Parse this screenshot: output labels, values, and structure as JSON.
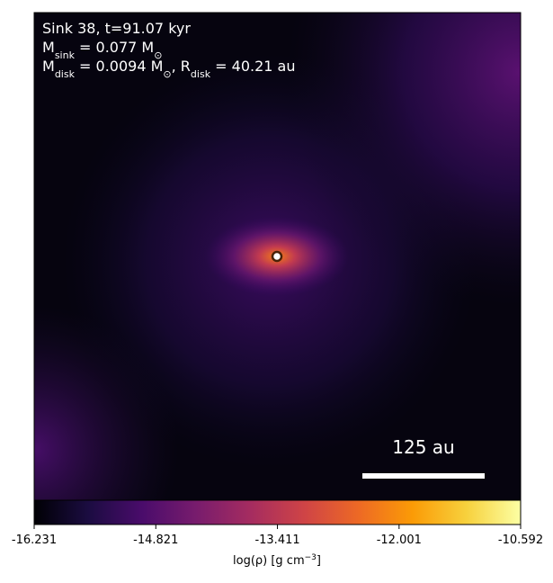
{
  "chart_data": {
    "type": "image",
    "annotations": [
      [
        "Sink 38, t=91.07 kyr"
      ],
      [
        "M",
        {
          "sub": "sink"
        },
        " = 0.077 M",
        {
          "sub": "⊙"
        }
      ],
      [
        "M",
        {
          "sub": "disk"
        },
        " = 0.0094 M",
        {
          "sub": "⊙"
        },
        ", R",
        {
          "sub": "disk"
        },
        " = 40.21 au"
      ]
    ],
    "scalebar_label": "125 au",
    "colorbar": {
      "label": [
        "log(ρ) [g cm",
        {
          "sup": "−3"
        },
        "]"
      ],
      "xlim": [
        -16.231,
        -10.592
      ],
      "xticks": [
        -16.231,
        -14.821,
        -13.411,
        -12.001,
        -10.592
      ],
      "colors": [
        "#000004",
        "#1b0c41",
        "#4a0c6b",
        "#781c6d",
        "#a52c60",
        "#cf4446",
        "#ed6925",
        "#fb9b06",
        "#f7d13d",
        "#fcffa4"
      ]
    }
  }
}
